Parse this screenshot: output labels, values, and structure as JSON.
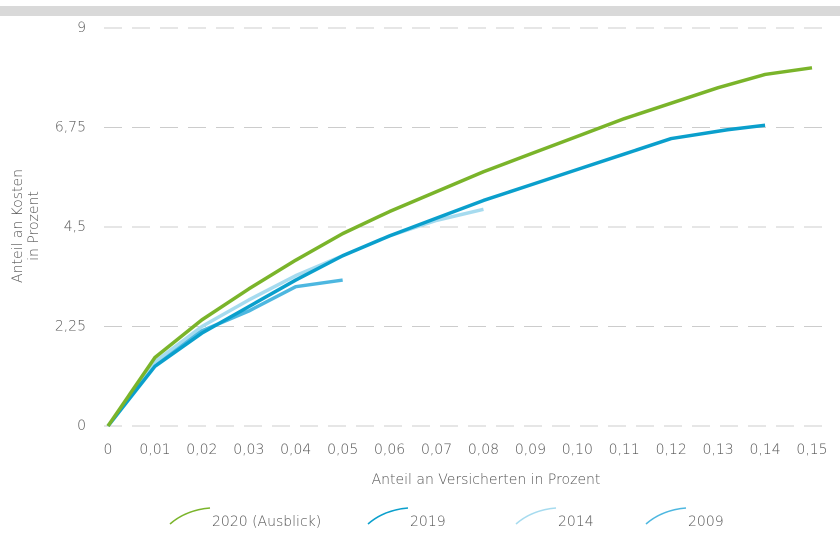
{
  "chart_data": {
    "type": "line",
    "xlabel": "Anteil an Versicherten in Prozent",
    "ylabel": [
      "Anteil an Kosten",
      "in Prozent"
    ],
    "xlim": [
      0,
      0.15
    ],
    "xticks": [
      0,
      {
        "value": 0.01,
        "label": "0,01"
      },
      {
        "value": 0.02,
        "label": "0,02"
      },
      {
        "value": 0.03,
        "label": "0,03"
      },
      {
        "value": 0.04,
        "label": "0,04"
      },
      {
        "value": 0.05,
        "label": "0,05"
      },
      {
        "value": 0.06,
        "label": "0,06"
      },
      {
        "value": 0.07,
        "label": "0,07"
      },
      {
        "value": 0.08,
        "label": "0,08"
      },
      {
        "value": 0.09,
        "label": "0,09"
      },
      {
        "value": 0.1,
        "label": "0,10"
      },
      {
        "value": 0.11,
        "label": "0,11"
      },
      {
        "value": 0.12,
        "label": "0,12"
      },
      {
        "value": 0.13,
        "label": "0,13"
      },
      {
        "value": 0.14,
        "label": "0,14"
      },
      {
        "value": 0.15,
        "label": "0,15"
      }
    ],
    "ylim": [
      0,
      9
    ],
    "yticks": [
      0,
      {
        "value": 2.25,
        "label": "2,25"
      },
      {
        "value": 4.5,
        "label": "4,5"
      },
      {
        "value": 6.75,
        "label": "6,75"
      },
      9
    ],
    "grid": true,
    "legend": "bottom",
    "series": [
      {
        "name": "2020 (Ausblick)",
        "color": "#7ab42a",
        "x": [
          0,
          0.01,
          0.02,
          0.03,
          0.04,
          0.05,
          0.06,
          0.07,
          0.08,
          0.09,
          0.1,
          0.11,
          0.12,
          0.13,
          0.14,
          0.15
        ],
        "values": [
          0,
          1.55,
          2.4,
          3.1,
          3.75,
          4.35,
          4.85,
          5.3,
          5.75,
          6.15,
          6.55,
          6.95,
          7.3,
          7.65,
          7.95,
          8.1
        ]
      },
      {
        "name": "2019",
        "color": "#0a9fcc",
        "x": [
          0,
          0.01,
          0.02,
          0.03,
          0.04,
          0.05,
          0.06,
          0.07,
          0.08,
          0.09,
          0.1,
          0.11,
          0.12,
          0.132,
          0.14
        ],
        "values": [
          0,
          1.35,
          2.1,
          2.7,
          3.3,
          3.85,
          4.3,
          4.7,
          5.1,
          5.45,
          5.8,
          6.15,
          6.5,
          6.7,
          6.8
        ]
      },
      {
        "name": "2014",
        "color": "#a6dbef",
        "x": [
          0,
          0.01,
          0.02,
          0.03,
          0.04,
          0.05,
          0.06,
          0.07,
          0.08
        ],
        "values": [
          0,
          1.45,
          2.25,
          2.85,
          3.4,
          3.85,
          4.3,
          4.65,
          4.9
        ]
      },
      {
        "name": "2009",
        "color": "#4db7e0",
        "x": [
          0,
          0.01,
          0.02,
          0.03,
          0.04,
          0.05
        ],
        "values": [
          0,
          1.4,
          2.15,
          2.6,
          3.15,
          3.3
        ]
      }
    ]
  }
}
